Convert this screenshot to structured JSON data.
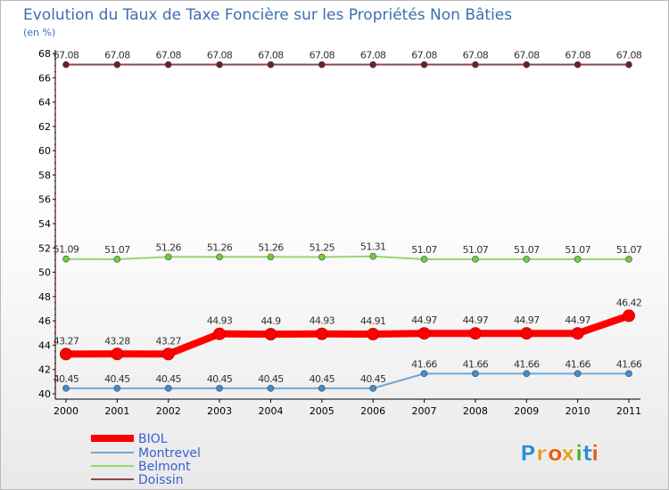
{
  "chart_data": {
    "type": "line",
    "title": "Evolution du Taux de Taxe Foncière sur les Propriétés Non Bâties",
    "subtitle": "(en %)",
    "xlabel": "",
    "ylabel": "",
    "categories": [
      "2000",
      "2001",
      "2002",
      "2003",
      "2004",
      "2005",
      "2006",
      "2007",
      "2008",
      "2009",
      "2010",
      "2011"
    ],
    "ylim": [
      40,
      68
    ],
    "yticks": [
      40,
      42,
      44,
      46,
      48,
      50,
      52,
      54,
      56,
      58,
      60,
      62,
      64,
      66,
      68
    ],
    "grid": false,
    "legend_position": "bottom-left",
    "series": [
      {
        "name": "BIOL",
        "color": "#ff0000",
        "marker_color": "#ff0000",
        "values": [
          43.27,
          43.28,
          43.27,
          44.93,
          44.9,
          44.93,
          44.91,
          44.97,
          44.97,
          44.97,
          44.97,
          46.42
        ],
        "labels": [
          "43.27",
          "43.28",
          "43.27",
          "44.93",
          "44.9",
          "44.93",
          "44.91",
          "44.97",
          "44.97",
          "44.97",
          "44.97",
          "46.42"
        ]
      },
      {
        "name": "Montrevel",
        "color": "#6fa8d6",
        "marker_color": "#3f8fd2",
        "values": [
          40.45,
          40.45,
          40.45,
          40.45,
          40.45,
          40.45,
          40.45,
          41.66,
          41.66,
          41.66,
          41.66,
          41.66
        ],
        "labels": [
          "40.45",
          "40.45",
          "40.45",
          "40.45",
          "40.45",
          "40.45",
          "40.45",
          "41.66",
          "41.66",
          "41.66",
          "41.66",
          "41.66"
        ]
      },
      {
        "name": "Belmont",
        "color": "#9ad46e",
        "marker_color": "#6fcf3a",
        "values": [
          51.09,
          51.07,
          51.26,
          51.26,
          51.26,
          51.25,
          51.31,
          51.07,
          51.07,
          51.07,
          51.07,
          51.07
        ],
        "labels": [
          "51.09",
          "51.07",
          "51.26",
          "51.26",
          "51.26",
          "51.25",
          "51.31",
          "51.07",
          "51.07",
          "51.07",
          "51.07",
          "51.07"
        ]
      },
      {
        "name": "Doissin",
        "color": "#8a4a4a",
        "marker_color": "#6e1f2a",
        "values": [
          67.08,
          67.08,
          67.08,
          67.08,
          67.08,
          67.08,
          67.08,
          67.08,
          67.08,
          67.08,
          67.08,
          67.08
        ],
        "labels": [
          "67.08",
          "67.08",
          "67.08",
          "67.08",
          "67.08",
          "67.08",
          "67.08",
          "67.08",
          "67.08",
          "67.08",
          "67.08",
          "67.08"
        ]
      }
    ]
  },
  "colors": {
    "title": "#3d6fb2",
    "legend_text": "#3b5fd0",
    "axis": "#000000",
    "tick_marker": "#cc0000"
  },
  "brand": {
    "letters": [
      "P",
      "r",
      "o",
      "x",
      "i",
      "t",
      "i"
    ],
    "colors": [
      "#2d8fd8",
      "#e8a020",
      "#e85a10",
      "#e8a020",
      "#44b236",
      "#2d8fd8",
      "#e85a10"
    ]
  }
}
